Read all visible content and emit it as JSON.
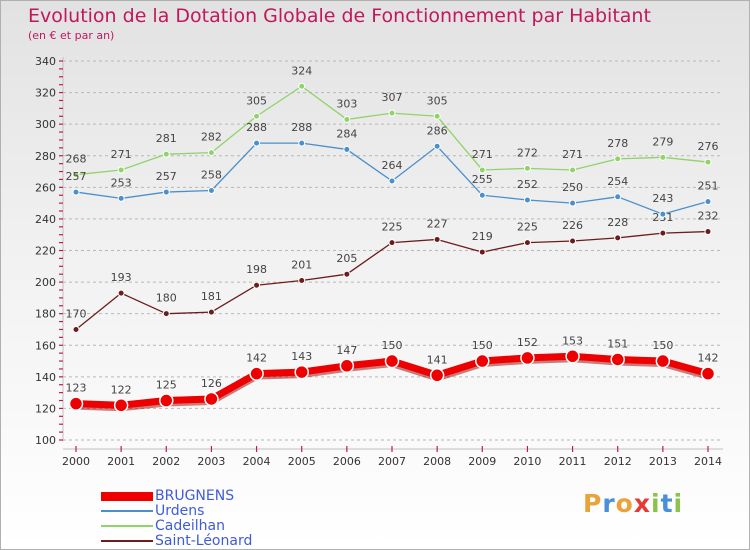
{
  "header": {
    "title": "Evolution de la Dotation Globale de Fonctionnement par Habitant",
    "subtitle": "(en € et par an)"
  },
  "logo": {
    "text": "Proxiti",
    "colors": [
      "#e8a33a",
      "#4a90d9",
      "#e8a33a",
      "#e53935",
      "#8bc34a",
      "#4a90d9",
      "#8bc34a"
    ]
  },
  "chart_data": {
    "type": "line",
    "title": "Evolution de la Dotation Globale de Fonctionnement par Habitant",
    "subtitle": "(en € et par an)",
    "x": [
      2000,
      2001,
      2002,
      2003,
      2004,
      2005,
      2006,
      2007,
      2008,
      2009,
      2010,
      2011,
      2012,
      2013,
      2014
    ],
    "ylim": [
      100,
      340
    ],
    "yticks": [
      100,
      120,
      140,
      160,
      180,
      200,
      220,
      240,
      260,
      280,
      300,
      320,
      340
    ],
    "grid": "horizontal dashed",
    "legend_position": "bottom-left",
    "series": [
      {
        "name": "Saint-Léonard",
        "color": "#6b1c1c",
        "values": [
          170,
          193,
          180,
          181,
          198,
          201,
          205,
          225,
          227,
          219,
          225,
          226,
          228,
          231,
          232
        ]
      },
      {
        "name": "Cadeilhan",
        "color": "#8fd36a",
        "values": [
          268,
          271,
          281,
          282,
          305,
          324,
          303,
          307,
          305,
          271,
          272,
          271,
          278,
          279,
          276
        ]
      },
      {
        "name": "Urdens",
        "color": "#4b8fcc",
        "values": [
          257,
          253,
          257,
          258,
          288,
          288,
          284,
          264,
          286,
          255,
          252,
          250,
          254,
          243,
          251
        ]
      },
      {
        "name": "BRUGNENS",
        "color": "#ee0000",
        "values": [
          123,
          122,
          125,
          126,
          142,
          143,
          147,
          150,
          141,
          150,
          152,
          153,
          151,
          150,
          142
        ]
      }
    ]
  }
}
